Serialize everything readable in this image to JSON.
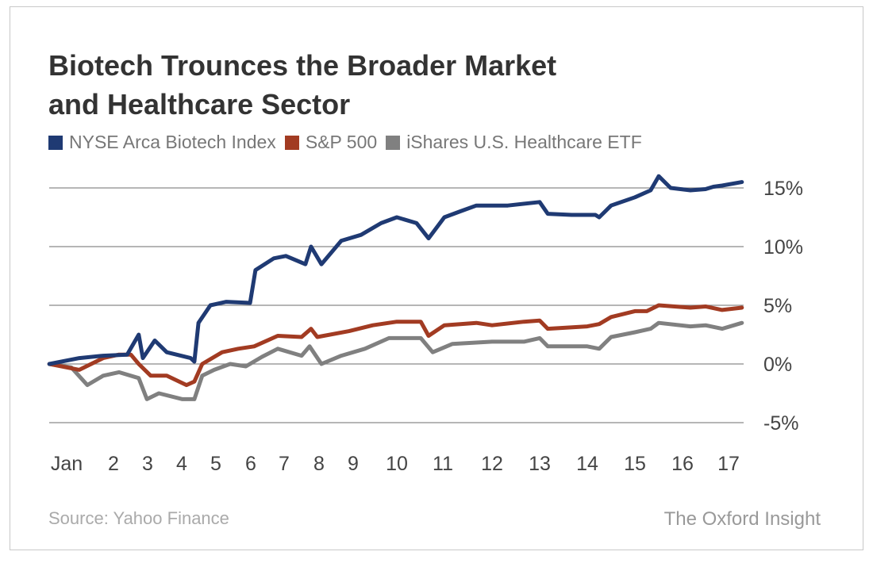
{
  "chart_data": {
    "type": "line",
    "title": "Biotech Trounces the Broader Market and Healthcare Sector",
    "title_lines": [
      "Biotech Trounces the Broader Market",
      "and Healthcare Sector"
    ],
    "ylim": [
      -5,
      15
    ],
    "yticks": [
      15,
      10,
      5,
      0,
      -5
    ],
    "ytick_labels": [
      "15%",
      "10%",
      "5%",
      "0%",
      "-5%"
    ],
    "xticks": [
      1,
      2,
      3,
      4,
      5,
      6,
      7,
      8,
      9,
      10,
      11,
      12,
      13,
      14,
      15,
      16,
      17
    ],
    "xtick_labels": [
      "Jan",
      "2",
      "3",
      "4",
      "5",
      "6",
      "7",
      "8",
      "9",
      "10",
      "11",
      "12",
      "13",
      "14",
      "15",
      "16",
      "17"
    ],
    "grid": "horizontal",
    "legend_position": "top-left",
    "series": [
      {
        "name": "NYSE Arca Biotech Index",
        "color": "#1f3a73",
        "points": [
          [
            0.63,
            0
          ],
          [
            1.27,
            0.5
          ],
          [
            1.78,
            0.7
          ],
          [
            2.4,
            0.8
          ],
          [
            2.74,
            2.5
          ],
          [
            2.86,
            0.5
          ],
          [
            3.21,
            2
          ],
          [
            3.56,
            1
          ],
          [
            4.26,
            0.5
          ],
          [
            4.37,
            0.2
          ],
          [
            4.49,
            3.5
          ],
          [
            4.84,
            5
          ],
          [
            5.3,
            5.3
          ],
          [
            5.98,
            5.2
          ],
          [
            6.14,
            8
          ],
          [
            6.69,
            9
          ],
          [
            7.05,
            9.2
          ],
          [
            7.61,
            8.5
          ],
          [
            7.77,
            10
          ],
          [
            8.07,
            8.5
          ],
          [
            8.65,
            10.5
          ],
          [
            9.18,
            11
          ],
          [
            9.64,
            12
          ],
          [
            10,
            12.5
          ],
          [
            10.43,
            12
          ],
          [
            10.69,
            10.7
          ],
          [
            11.03,
            12.5
          ],
          [
            11.35,
            13
          ],
          [
            11.68,
            13.5
          ],
          [
            12.33,
            13.5
          ],
          [
            13,
            13.8
          ],
          [
            13.17,
            12.8
          ],
          [
            13.67,
            12.7
          ],
          [
            14.17,
            12.7
          ],
          [
            14.25,
            12.5
          ],
          [
            14.5,
            13.5
          ],
          [
            15,
            14.2
          ],
          [
            15.33,
            14.8
          ],
          [
            15.5,
            16
          ],
          [
            15.75,
            15
          ],
          [
            16.17,
            14.8
          ],
          [
            16.5,
            14.9
          ],
          [
            16.67,
            15.1
          ],
          [
            16.86,
            15.2
          ],
          [
            17.29,
            15.5
          ]
        ]
      },
      {
        "name": "S&P 500",
        "color": "#a23b22",
        "points": [
          [
            0.63,
            0
          ],
          [
            1.27,
            -0.5
          ],
          [
            1.78,
            0.5
          ],
          [
            2.16,
            0.8
          ],
          [
            2.51,
            0.8
          ],
          [
            2.74,
            0
          ],
          [
            3.09,
            -1
          ],
          [
            3.56,
            -1
          ],
          [
            4.14,
            -1.8
          ],
          [
            4.37,
            -1.5
          ],
          [
            4.6,
            0
          ],
          [
            5.18,
            1
          ],
          [
            5.64,
            1.3
          ],
          [
            6.1,
            1.5
          ],
          [
            6.81,
            2.4
          ],
          [
            7.5,
            2.3
          ],
          [
            7.77,
            3
          ],
          [
            7.95,
            2.3
          ],
          [
            8.88,
            2.8
          ],
          [
            9.45,
            3.3
          ],
          [
            10,
            3.6
          ],
          [
            10.52,
            3.6
          ],
          [
            10.69,
            2.4
          ],
          [
            11.03,
            3.3
          ],
          [
            11.68,
            3.5
          ],
          [
            12,
            3.3
          ],
          [
            12.67,
            3.6
          ],
          [
            13,
            3.7
          ],
          [
            13.17,
            3
          ],
          [
            14,
            3.2
          ],
          [
            14.25,
            3.4
          ],
          [
            14.5,
            4
          ],
          [
            15,
            4.5
          ],
          [
            15.25,
            4.5
          ],
          [
            15.5,
            5
          ],
          [
            16.17,
            4.8
          ],
          [
            16.5,
            4.9
          ],
          [
            16.86,
            4.6
          ],
          [
            17.29,
            4.8
          ]
        ]
      },
      {
        "name": "iShares U.S. Healthcare ETF",
        "color": "#808080",
        "points": [
          [
            0.63,
            0
          ],
          [
            1.1,
            -0.3
          ],
          [
            1.44,
            -1.8
          ],
          [
            1.78,
            -1
          ],
          [
            2.16,
            -0.7
          ],
          [
            2.74,
            -1.2
          ],
          [
            2.98,
            -3
          ],
          [
            3.33,
            -2.5
          ],
          [
            4.02,
            -3
          ],
          [
            4.37,
            -3
          ],
          [
            4.6,
            -1
          ],
          [
            4.95,
            -0.5
          ],
          [
            5.41,
            0
          ],
          [
            5.86,
            -0.2
          ],
          [
            6.33,
            0.6
          ],
          [
            6.81,
            1.3
          ],
          [
            7.5,
            0.7
          ],
          [
            7.73,
            1.5
          ],
          [
            8.07,
            0
          ],
          [
            8.65,
            0.7
          ],
          [
            9.27,
            1.3
          ],
          [
            9.82,
            2.2
          ],
          [
            10.52,
            2.2
          ],
          [
            10.78,
            1
          ],
          [
            11.19,
            1.7
          ],
          [
            12,
            1.9
          ],
          [
            12.67,
            1.9
          ],
          [
            13,
            2.2
          ],
          [
            13.17,
            1.5
          ],
          [
            14,
            1.5
          ],
          [
            14.25,
            1.3
          ],
          [
            14.5,
            2.3
          ],
          [
            15,
            2.7
          ],
          [
            15.33,
            3
          ],
          [
            15.5,
            3.5
          ],
          [
            16.17,
            3.2
          ],
          [
            16.5,
            3.3
          ],
          [
            16.86,
            3
          ],
          [
            17.29,
            3.5
          ]
        ]
      }
    ]
  },
  "footer": {
    "source": "Source: Yahoo Finance",
    "brand": "The Oxford Insight"
  }
}
